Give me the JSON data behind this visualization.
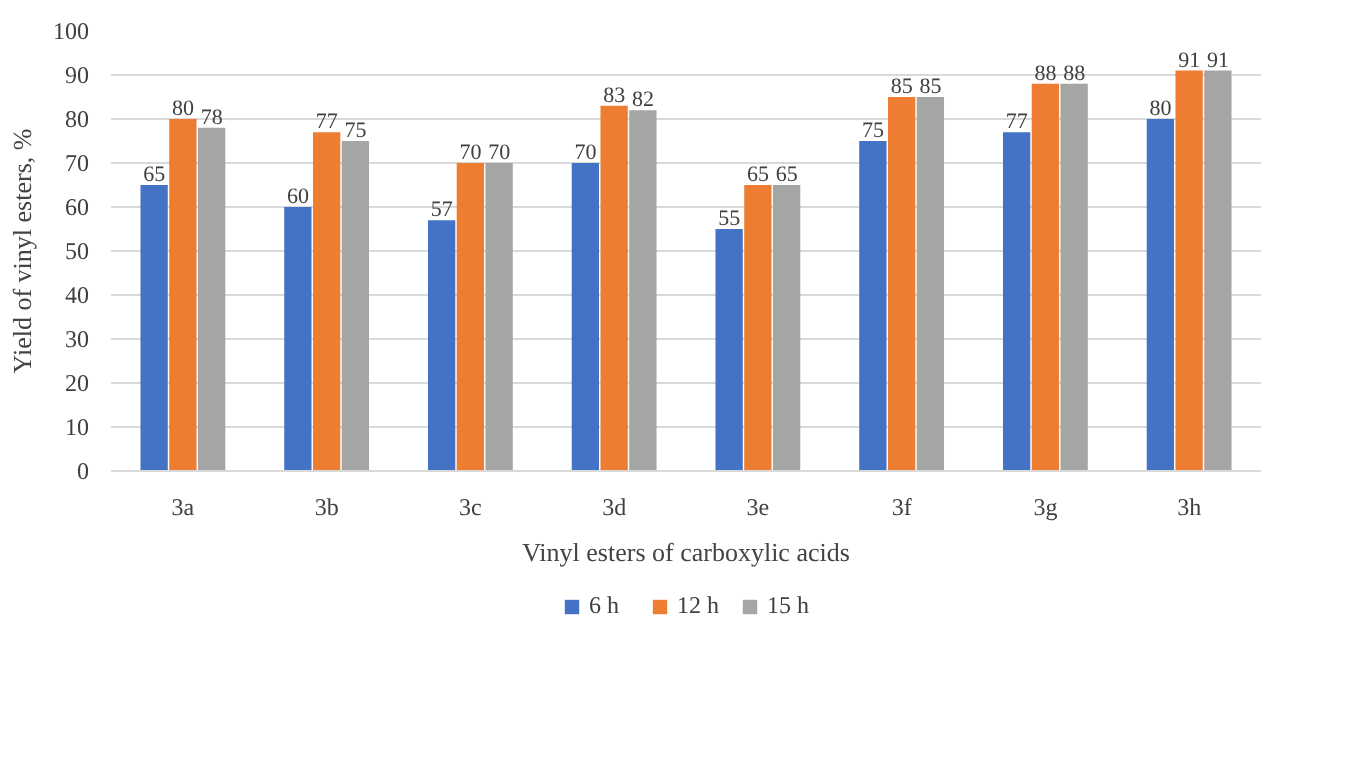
{
  "chart_data": {
    "type": "bar",
    "xlabel": "Vinyl esters of carboxylic acids",
    "ylabel": "Yield of vinyl esters, %",
    "categories": [
      "3a",
      "3b",
      "3c",
      "3d",
      "3e",
      "3f",
      "3g",
      "3h"
    ],
    "series": [
      {
        "name": "6 h",
        "color": "#4472c4",
        "values": [
          65,
          60,
          57,
          70,
          55,
          75,
          77,
          80
        ]
      },
      {
        "name": "12 h",
        "color": "#ed7d31",
        "values": [
          80,
          77,
          70,
          83,
          65,
          85,
          88,
          91
        ]
      },
      {
        "name": "15 h",
        "color": "#a5a5a5",
        "values": [
          78,
          75,
          70,
          82,
          65,
          85,
          88,
          91
        ]
      }
    ],
    "ylim": [
      0,
      100
    ],
    "yticks": [
      0,
      10,
      20,
      30,
      40,
      50,
      60,
      70,
      80,
      90,
      100
    ],
    "grid": "y",
    "legend": "bottom",
    "data_labels": true
  }
}
